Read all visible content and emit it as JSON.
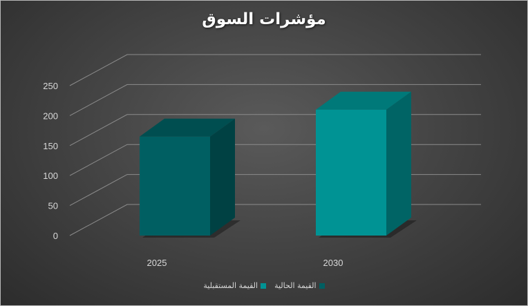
{
  "chart_data": {
    "type": "bar",
    "title": "مؤشرات السوق",
    "categories": [
      "2025",
      "2030"
    ],
    "series": [
      {
        "name": "القيمة الحالية",
        "color": "#005f62",
        "values": [
          165,
          null
        ]
      },
      {
        "name": "القيمة المستقبلية",
        "color": "#009394",
        "values": [
          null,
          210
        ]
      }
    ],
    "ylim": [
      0,
      250
    ],
    "yticks": [
      "0",
      "50",
      "100",
      "150",
      "200",
      "250"
    ],
    "grid": true,
    "three_d": true,
    "legend_position": "bottom"
  }
}
